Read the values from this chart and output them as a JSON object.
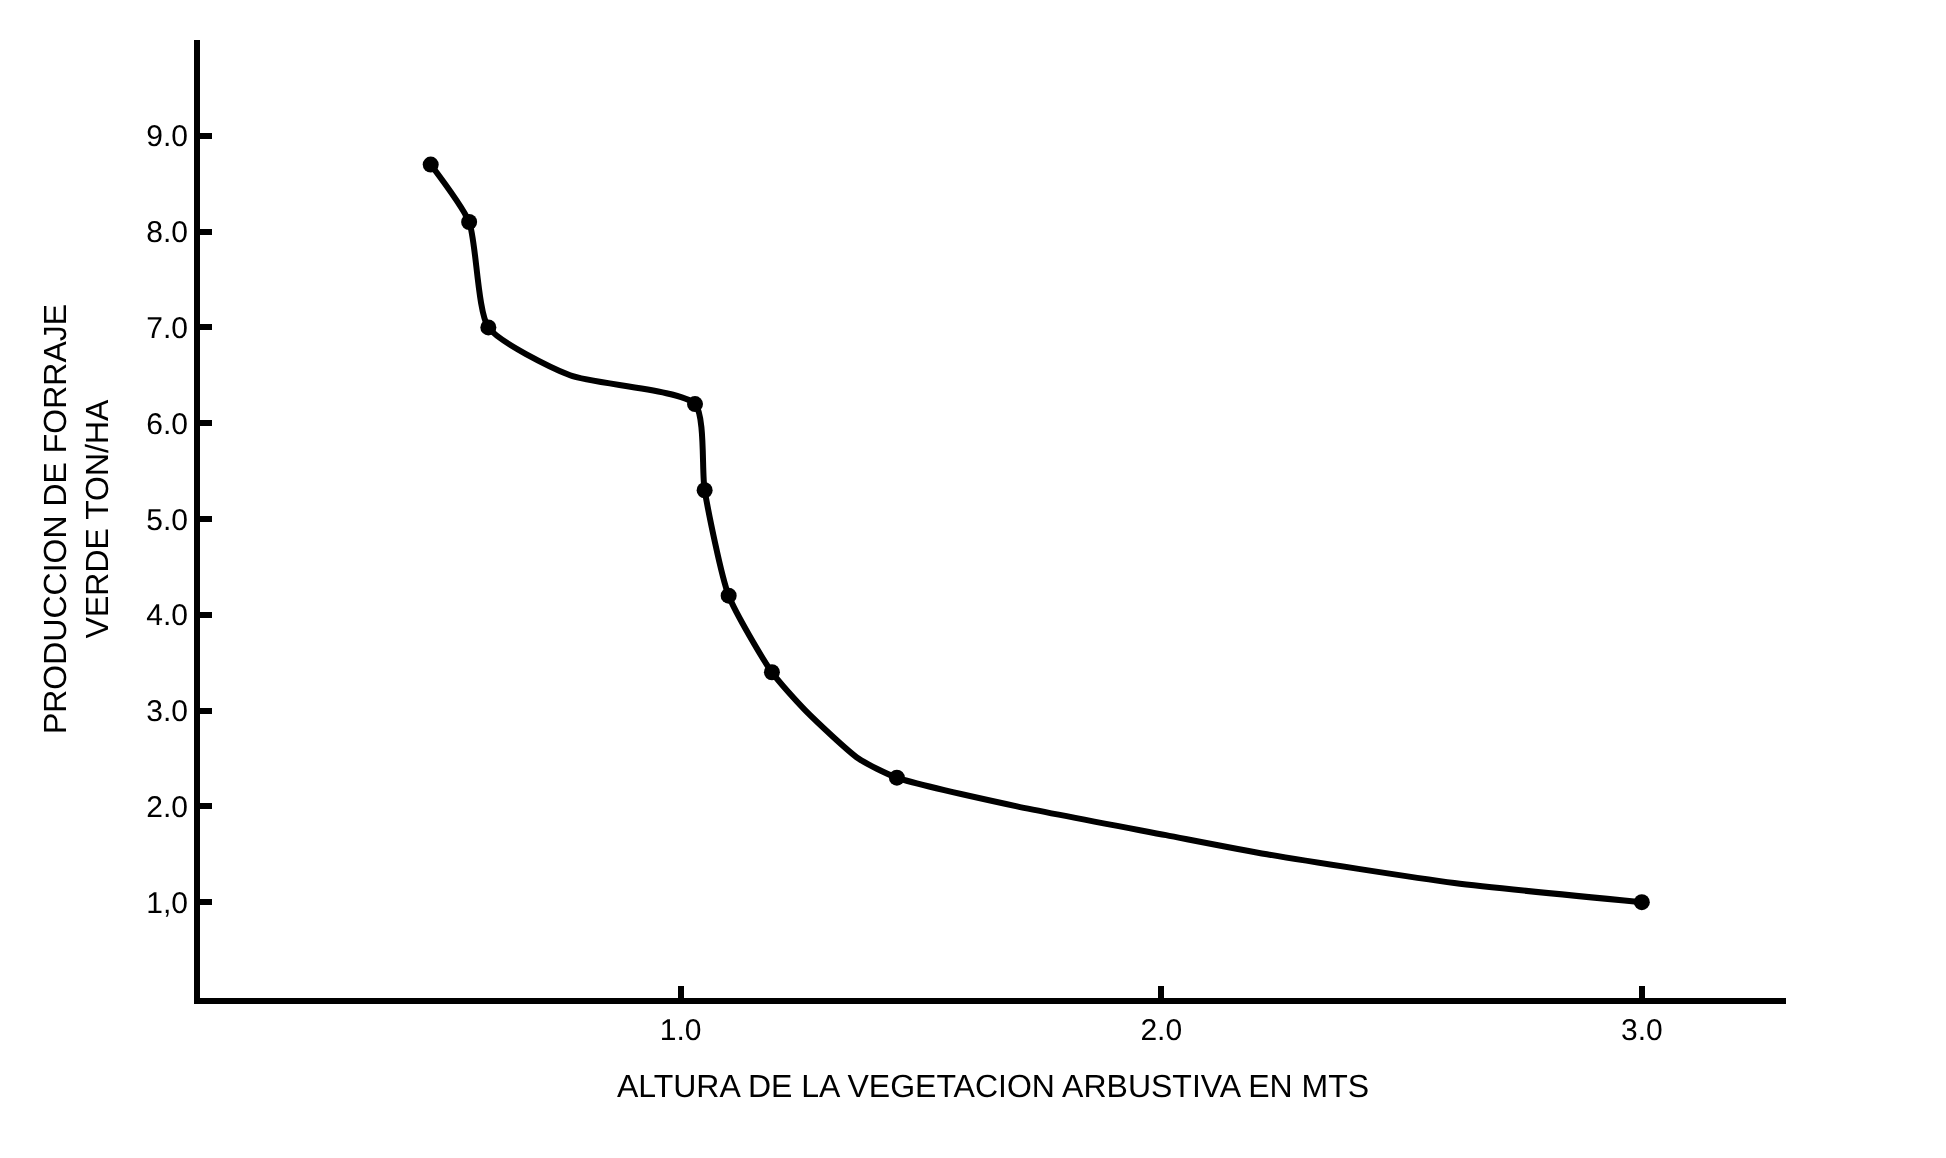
{
  "chart_data": {
    "type": "line",
    "xlabel": "ALTURA DE LA VEGETACION ARBUSTIVA EN MTS",
    "ylabel": "PRODUCCION DE FORRAJE\nVERDE TON/HA",
    "xlim": [
      0,
      3.3
    ],
    "ylim": [
      0,
      10
    ],
    "xticks": [
      {
        "value": 1,
        "label": "1.0"
      },
      {
        "value": 2,
        "label": "2.0"
      },
      {
        "value": 3,
        "label": "3.0"
      }
    ],
    "yticks": [
      {
        "value": 1,
        "label": "1,0"
      },
      {
        "value": 2,
        "label": "2.0"
      },
      {
        "value": 3,
        "label": "3.0"
      },
      {
        "value": 4,
        "label": "4.0"
      },
      {
        "value": 5,
        "label": "5.0"
      },
      {
        "value": 6,
        "label": "6.0"
      },
      {
        "value": 7,
        "label": "7.0"
      },
      {
        "value": 8,
        "label": "8.0"
      },
      {
        "value": 9,
        "label": "9.0"
      }
    ],
    "line_style": "solid",
    "series": [
      {
        "marker": "none",
        "color": "#000000",
        "x": [
          0.48,
          0.56,
          0.6,
          0.77,
          1.03,
          1.05,
          1.1,
          1.19,
          1.26,
          1.37,
          1.45,
          1.7,
          2.01,
          2.22,
          2.61,
          3.0
        ],
        "values": [
          8.7,
          8.1,
          7.0,
          6.5,
          6.2,
          5.3,
          4.2,
          3.4,
          3.0,
          2.5,
          2.3,
          2.0,
          1.7,
          1.5,
          1.2,
          1.0
        ]
      },
      {
        "type": "scatter",
        "marker": "circle",
        "color": "#000000",
        "x": [
          0.48,
          0.56,
          0.6,
          1.03,
          1.05,
          1.1,
          1.19,
          1.45,
          3.0
        ],
        "values": [
          8.7,
          8.1,
          7.0,
          6.2,
          5.3,
          4.2,
          3.4,
          2.3,
          1.0
        ]
      }
    ]
  }
}
